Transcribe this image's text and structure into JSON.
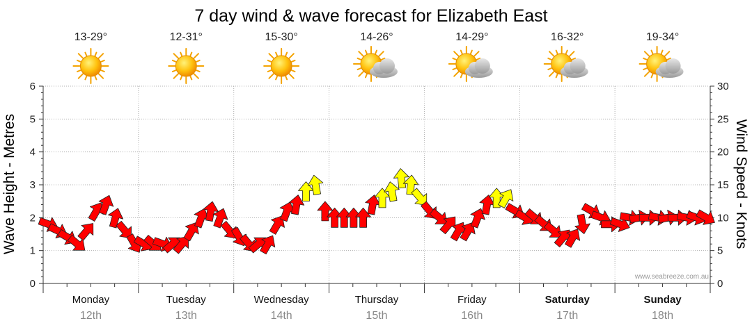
{
  "chart_data": {
    "type": "line",
    "title": "7 day wind & wave forecast for Elizabeth East",
    "y_left_label": "Wave Height - Metres",
    "y_right_label": "Wind Speed - Knots",
    "y_left_range": [
      0,
      6
    ],
    "y_left_ticks": [
      "0",
      "1",
      "2",
      "3",
      "4",
      "5",
      "6"
    ],
    "y_right_range": [
      0,
      30
    ],
    "y_right_ticks": [
      "0",
      "5",
      "10",
      "15",
      "20",
      "25",
      "30"
    ],
    "grid": true,
    "days": [
      {
        "name": "Monday",
        "date": "12th",
        "temp": "13-29°",
        "icon": "sun-icon",
        "bold": false
      },
      {
        "name": "Tuesday",
        "date": "13th",
        "temp": "12-31°",
        "icon": "sun-icon",
        "bold": false
      },
      {
        "name": "Wednesday",
        "date": "14th",
        "temp": "15-30°",
        "icon": "sun-icon",
        "bold": false
      },
      {
        "name": "Thursday",
        "date": "15th",
        "temp": "14-26°",
        "icon": "partly-cloudy-icon",
        "bold": false
      },
      {
        "name": "Friday",
        "date": "16th",
        "temp": "14-29°",
        "icon": "partly-cloudy-icon",
        "bold": false
      },
      {
        "name": "Saturday",
        "date": "17th",
        "temp": "16-32°",
        "icon": "partly-cloudy-icon",
        "bold": true
      },
      {
        "name": "Sunday",
        "date": "18th",
        "temp": "19-34°",
        "icon": "partly-cloudy-icon",
        "bold": true
      }
    ],
    "wind_series": {
      "name": "Wind Speed",
      "time_days": [
        0,
        0.1,
        0.2,
        0.3,
        0.4,
        0.5,
        0.6,
        0.7,
        0.8,
        0.9,
        1,
        1.1,
        1.2,
        1.3,
        1.4,
        1.5,
        1.6,
        1.7,
        1.8,
        1.9,
        2,
        2.1,
        2.2,
        2.3,
        2.4,
        2.5,
        2.6,
        2.7,
        2.8,
        2.9,
        3,
        3.1,
        3.2,
        3.3,
        3.4,
        3.5,
        3.6,
        3.7,
        3.8,
        3.9,
        4,
        4.1,
        4.2,
        4.3,
        4.4,
        4.5,
        4.6,
        4.7,
        4.8,
        4.9,
        5,
        5.1,
        5.2,
        5.3,
        5.4,
        5.5,
        5.6,
        5.7,
        5.8,
        5.9,
        6,
        6.1,
        6.2,
        6.3,
        6.4,
        6.5,
        6.6,
        6.7,
        6.8,
        6.9
      ],
      "knots": [
        9,
        8,
        7,
        6,
        8,
        11,
        12,
        10,
        8,
        6,
        6,
        6,
        6,
        6,
        6,
        8,
        10,
        11,
        10,
        8,
        7,
        6,
        6,
        6,
        9,
        11,
        12,
        14,
        15,
        11,
        10,
        10,
        10,
        10,
        12,
        13,
        14,
        16,
        15,
        13,
        11,
        10,
        9,
        8,
        8,
        10,
        12,
        13,
        13,
        11,
        10,
        10,
        9,
        8,
        7,
        7,
        9,
        11,
        10,
        9,
        9,
        10,
        10,
        10,
        10,
        10,
        10,
        10,
        10,
        10
      ],
      "direction_deg": [
        290,
        295,
        300,
        310,
        220,
        210,
        200,
        195,
        320,
        330,
        300,
        310,
        290,
        230,
        220,
        210,
        200,
        190,
        200,
        320,
        330,
        320,
        230,
        210,
        210,
        200,
        190,
        180,
        170,
        180,
        180,
        180,
        180,
        180,
        190,
        180,
        170,
        175,
        185,
        320,
        320,
        310,
        220,
        210,
        210,
        200,
        190,
        180,
        210,
        300,
        300,
        310,
        310,
        310,
        220,
        210,
        350,
        300,
        290,
        270,
        290,
        280,
        260,
        270,
        280,
        260,
        270,
        280,
        290,
        300
      ]
    },
    "credit": "www.seabreeze.com.au"
  },
  "colors": {
    "wind_red": "#ff0000",
    "wind_yellow": "#ffff00",
    "grid": "#b0b0b0",
    "date_text": "#888888"
  }
}
